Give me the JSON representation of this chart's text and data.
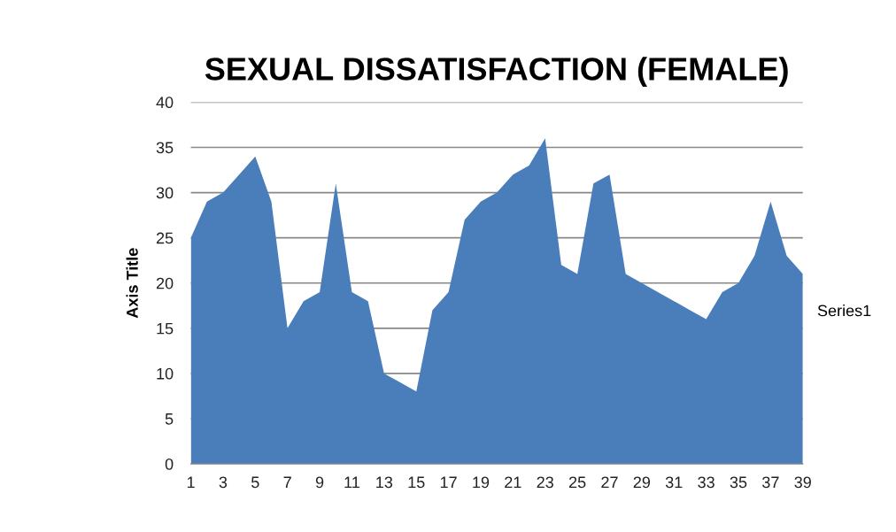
{
  "chart_data": {
    "type": "area",
    "title": "SEXUAL DISSATISFACTION (FEMALE)",
    "ylabel": "Axis Title",
    "categories": [
      "1",
      null,
      "3",
      null,
      "5",
      null,
      "7",
      null,
      "9",
      null,
      "11",
      null,
      "13",
      null,
      "15",
      null,
      "17",
      null,
      "19",
      null,
      "21",
      null,
      "23",
      null,
      "25",
      null,
      "27",
      null,
      "29",
      null,
      "31",
      null,
      "33",
      null,
      "35",
      null,
      "37",
      null,
      "39"
    ],
    "series": [
      {
        "name": "Series1",
        "color": "#4a7ebb",
        "values": [
          25,
          29,
          30,
          32,
          34,
          29,
          15,
          18,
          19,
          31,
          19,
          18,
          10,
          9,
          8,
          17,
          19,
          27,
          29,
          30,
          32,
          33,
          36,
          22,
          21,
          31,
          32,
          21,
          20,
          19,
          18,
          17,
          16,
          19,
          20,
          23,
          29,
          23,
          21
        ]
      }
    ],
    "ylim": [
      0,
      40
    ],
    "yticks": [
      0,
      5,
      10,
      15,
      20,
      25,
      30,
      35,
      40
    ],
    "grid": "y",
    "legend": "right"
  }
}
